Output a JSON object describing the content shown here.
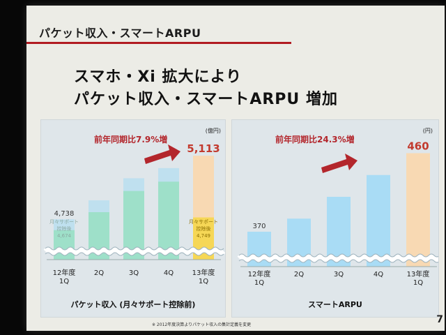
{
  "slide": {
    "title": "パケット収入・スマートARPU",
    "headline_lines": [
      "スマホ・Xi 拡大により",
      "パケット収入・スマートARPU 増加"
    ],
    "footnote": "※ 2012年度決算よりパケット収入の集計定義を変更",
    "page_number": "7"
  },
  "colors": {
    "title_rule": "#b11b22",
    "bar_cap": "#bfe0ef",
    "bar_green": "#9ee0c9",
    "bar_blue": "#a9dcf5",
    "bar_yellow": "#f6d756",
    "bar_orange": "#f8d9b3",
    "arrow": "#b3262c",
    "growth_text": "#b3262c"
  },
  "chart_data": [
    {
      "type": "bar",
      "title": "パケット収入 (月々サポート控除前)",
      "unit": "(億円)",
      "growth_label": "前年同期比",
      "growth_value": "7.9%増",
      "categories": [
        "12年度\n1Q",
        "2Q",
        "3Q",
        "4Q",
        "13年度\n1Q"
      ],
      "series": [
        {
          "name": "パケット収入",
          "values": [
            4738,
            4850,
            4980,
            5040,
            5113
          ]
        },
        {
          "name": "月々サポート控除後",
          "values": [
            4674,
            4780,
            4905,
            4960,
            4749
          ]
        }
      ],
      "value_labels": [
        "4,738",
        "",
        "",
        "",
        "5,113"
      ],
      "inner_labels": [
        "月々サポート\n控除後\n4,674",
        "",
        "",
        "",
        "月々サポート\n控除後\n4,749"
      ],
      "axis_break": true,
      "ylim": [
        4500,
        5200
      ],
      "legend": "none"
    },
    {
      "type": "bar",
      "title": "スマートARPU",
      "unit": "(円)",
      "growth_label": "前年同期比",
      "growth_value": "24.3%増",
      "categories": [
        "12年度\n1Q",
        "2Q",
        "3Q",
        "4Q",
        "13年度\n1Q"
      ],
      "series": [
        {
          "name": "スマートARPU",
          "values": [
            370,
            385,
            410,
            435,
            460
          ]
        }
      ],
      "value_labels": [
        "370",
        "",
        "",
        "",
        "460"
      ],
      "axis_break": true,
      "ylim": [
        330,
        470
      ],
      "legend": "none"
    }
  ]
}
